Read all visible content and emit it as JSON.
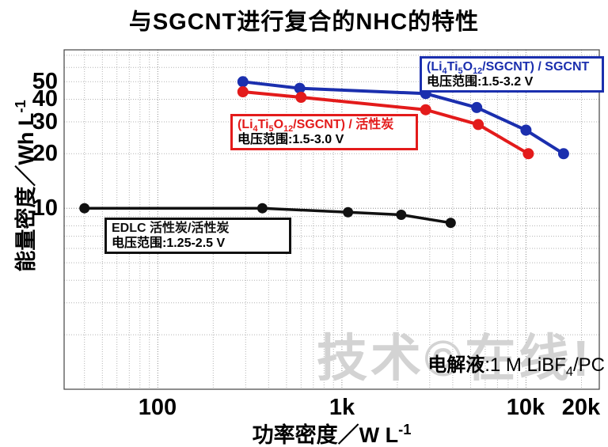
{
  "title": "与SGCNT进行复合的NHC的特性",
  "watermark": "技术©在线!",
  "annotation": {
    "label": "电解液",
    "value": ":1 M LiBF_4/PC"
  },
  "chart_data": {
    "type": "line",
    "title": "与SGCNT进行复合的NHC的特性",
    "xlabel": "功率密度／W L^-1",
    "ylabel": "能量密度／Wh L^-1",
    "x_scale": "log",
    "y_scale": "log",
    "x_range": [
      31,
      25000
    ],
    "y_range": [
      1,
      75
    ],
    "grid": "dotted log grid, minor lines each decade step, legend boxes inside plot",
    "x_ticks": [
      {
        "value": 100,
        "label": "100"
      },
      {
        "value": 1000,
        "label": "1k"
      },
      {
        "value": 10000,
        "label": "10k"
      },
      {
        "value": 20000,
        "label": "20k"
      }
    ],
    "y_ticks": [
      {
        "value": 10,
        "label": "10"
      },
      {
        "value": 20,
        "label": "20"
      },
      {
        "value": 30,
        "label": "30"
      },
      {
        "value": 40,
        "label": "40"
      },
      {
        "value": 50,
        "label": "50"
      }
    ],
    "series": [
      {
        "name": "(Li_4Ti_5O_12/SGCNT) / SGCNT",
        "voltage_range": "电压范围:1.5-3.2 V",
        "color": "#1b2fae",
        "points": [
          [
            290,
            50
          ],
          [
            590,
            46
          ],
          [
            2850,
            43
          ],
          [
            5400,
            36
          ],
          [
            10000,
            27
          ],
          [
            16000,
            20
          ]
        ]
      },
      {
        "name": "(Li_4Ti_5O_12/SGCNT) / 活性炭",
        "voltage_range": "电压范围:1.5-3.0 V",
        "color": "#e31b1b",
        "points": [
          [
            290,
            44
          ],
          [
            600,
            41
          ],
          [
            2850,
            35
          ],
          [
            5500,
            29
          ],
          [
            10300,
            20
          ]
        ]
      },
      {
        "name": "EDLC 活性炭/活性炭",
        "voltage_range": "电压范围:1.25-2.5 V",
        "color": "#111111",
        "points": [
          [
            40,
            10
          ],
          [
            370,
            10
          ],
          [
            1080,
            9.5
          ],
          [
            2100,
            9.2
          ],
          [
            3900,
            8.3
          ]
        ]
      }
    ]
  }
}
